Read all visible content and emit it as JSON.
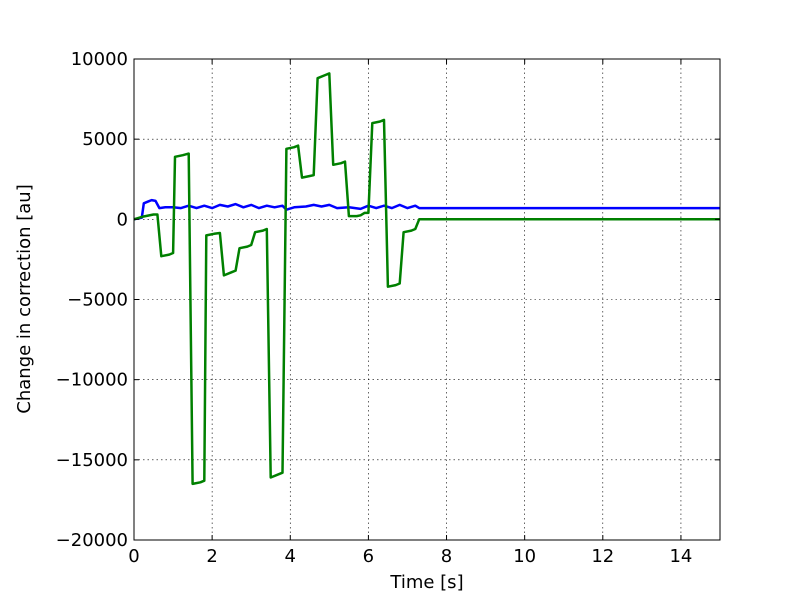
{
  "chart_data": {
    "type": "line",
    "title": "",
    "xlabel": "Time [s]",
    "ylabel": "Change in correction [au]",
    "xlim": [
      0,
      15
    ],
    "ylim": [
      -20000,
      10000
    ],
    "x_ticks": [
      0,
      2,
      4,
      6,
      8,
      10,
      12,
      14
    ],
    "y_ticks": [
      -20000,
      -15000,
      -10000,
      -5000,
      0,
      5000,
      10000
    ],
    "grid": true,
    "legend": "none",
    "series": [
      {
        "color": "#0000ff",
        "points": [
          [
            0,
            0
          ],
          [
            0.2,
            100
          ],
          [
            0.25,
            1000
          ],
          [
            0.35,
            1100
          ],
          [
            0.45,
            1200
          ],
          [
            0.55,
            1150
          ],
          [
            0.65,
            700
          ],
          [
            0.8,
            750
          ],
          [
            1.0,
            750
          ],
          [
            1.2,
            700
          ],
          [
            1.4,
            850
          ],
          [
            1.6,
            700
          ],
          [
            1.8,
            850
          ],
          [
            2.0,
            700
          ],
          [
            2.2,
            900
          ],
          [
            2.4,
            800
          ],
          [
            2.6,
            950
          ],
          [
            2.8,
            750
          ],
          [
            3.0,
            900
          ],
          [
            3.2,
            700
          ],
          [
            3.4,
            850
          ],
          [
            3.6,
            750
          ],
          [
            3.8,
            850
          ],
          [
            3.9,
            600
          ],
          [
            4.1,
            750
          ],
          [
            4.4,
            800
          ],
          [
            4.6,
            900
          ],
          [
            4.8,
            800
          ],
          [
            5.0,
            900
          ],
          [
            5.2,
            700
          ],
          [
            5.5,
            750
          ],
          [
            5.8,
            650
          ],
          [
            6.0,
            850
          ],
          [
            6.2,
            700
          ],
          [
            6.4,
            850
          ],
          [
            6.6,
            700
          ],
          [
            6.8,
            900
          ],
          [
            7.0,
            700
          ],
          [
            7.2,
            850
          ],
          [
            7.3,
            700
          ],
          [
            15,
            700
          ]
        ]
      },
      {
        "color": "#008000",
        "points": [
          [
            0,
            0
          ],
          [
            0.2,
            150
          ],
          [
            0.5,
            300
          ],
          [
            0.6,
            300
          ],
          [
            0.7,
            -2300
          ],
          [
            0.9,
            -2200
          ],
          [
            1.0,
            -2100
          ],
          [
            1.05,
            3900
          ],
          [
            1.25,
            4000
          ],
          [
            1.4,
            4100
          ],
          [
            1.5,
            -16500
          ],
          [
            1.7,
            -16400
          ],
          [
            1.8,
            -16300
          ],
          [
            1.85,
            -1000
          ],
          [
            2.05,
            -900
          ],
          [
            2.2,
            -850
          ],
          [
            2.3,
            -3500
          ],
          [
            2.5,
            -3300
          ],
          [
            2.6,
            -3200
          ],
          [
            2.7,
            -1800
          ],
          [
            2.9,
            -1700
          ],
          [
            3.0,
            -1600
          ],
          [
            3.1,
            -800
          ],
          [
            3.3,
            -700
          ],
          [
            3.4,
            -600
          ],
          [
            3.5,
            -16100
          ],
          [
            3.7,
            -15900
          ],
          [
            3.8,
            -15800
          ],
          [
            3.9,
            4400
          ],
          [
            4.1,
            4500
          ],
          [
            4.2,
            4600
          ],
          [
            4.3,
            2600
          ],
          [
            4.5,
            2700
          ],
          [
            4.6,
            2750
          ],
          [
            4.7,
            8800
          ],
          [
            4.9,
            9000
          ],
          [
            5.0,
            9100
          ],
          [
            5.1,
            3400
          ],
          [
            5.3,
            3500
          ],
          [
            5.4,
            3600
          ],
          [
            5.5,
            200
          ],
          [
            5.7,
            200
          ],
          [
            5.8,
            250
          ],
          [
            5.9,
            400
          ],
          [
            6.0,
            400
          ],
          [
            6.1,
            6000
          ],
          [
            6.3,
            6100
          ],
          [
            6.4,
            6200
          ],
          [
            6.5,
            -4200
          ],
          [
            6.7,
            -4100
          ],
          [
            6.8,
            -4000
          ],
          [
            6.9,
            -800
          ],
          [
            7.1,
            -700
          ],
          [
            7.2,
            -600
          ],
          [
            7.3,
            0
          ],
          [
            15,
            0
          ]
        ]
      }
    ]
  }
}
